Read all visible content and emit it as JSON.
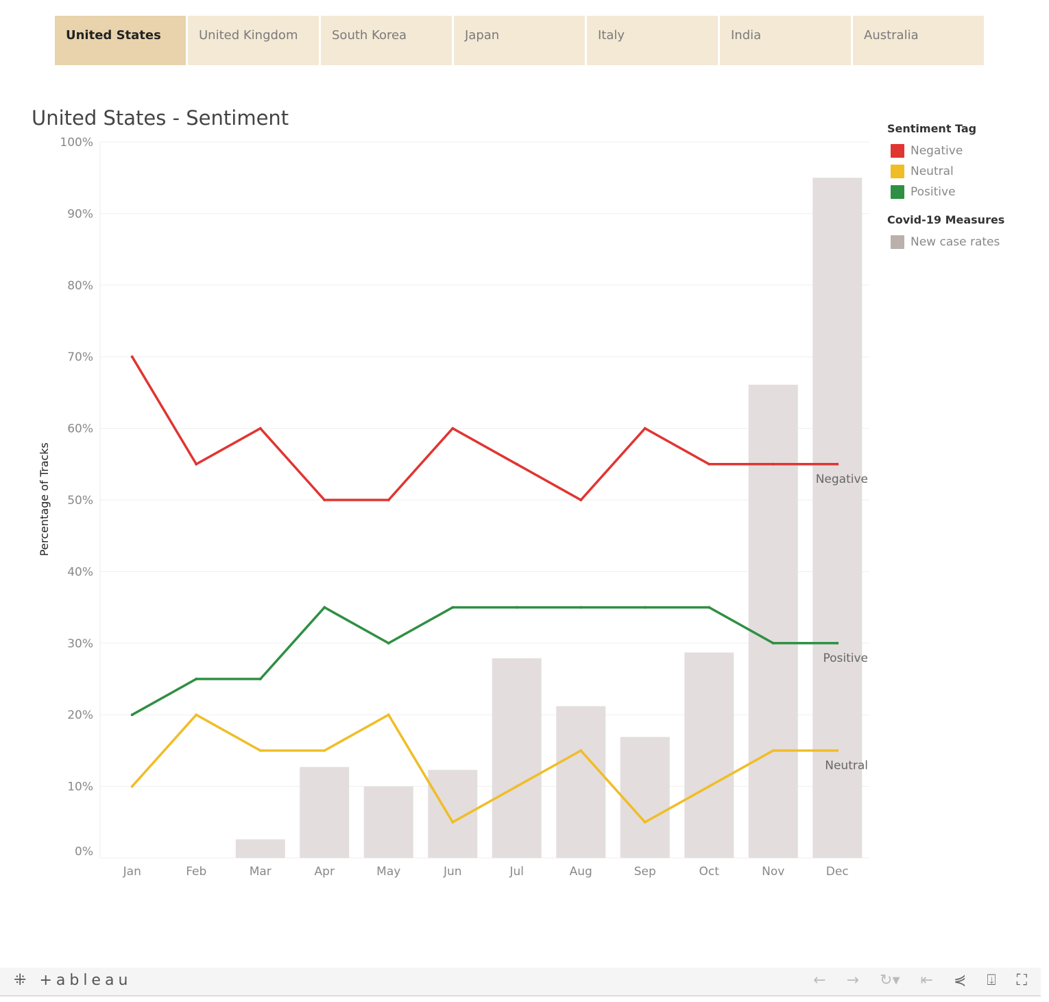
{
  "tabs": [
    {
      "label": "United States",
      "active": true
    },
    {
      "label": "United Kingdom"
    },
    {
      "label": "South Korea"
    },
    {
      "label": "Japan"
    },
    {
      "label": "Italy"
    },
    {
      "label": "India"
    },
    {
      "label": "Australia"
    }
  ],
  "legend": {
    "sentiment_title": "Sentiment Tag",
    "sentiment_items": [
      {
        "label": "Negative",
        "color": "#e03531"
      },
      {
        "label": "Neutral",
        "color": "#f0bd27"
      },
      {
        "label": "Positive",
        "color": "#2f8f42"
      }
    ],
    "covid_title": "Covid-19 Measures",
    "covid_items": [
      {
        "label": "New case rates",
        "color": "#bab0ac"
      }
    ]
  },
  "chart_data": {
    "type": "line+bar",
    "title": "United States - Sentiment",
    "ylabel": "Percentage of Tracks",
    "ylim": [
      0,
      100
    ],
    "yticks": [
      "0%",
      "10%",
      "20%",
      "30%",
      "40%",
      "50%",
      "60%",
      "70%",
      "80%",
      "90%",
      "100%"
    ],
    "categories": [
      "Jan",
      "Feb",
      "Mar",
      "Apr",
      "May",
      "Jun",
      "Jul",
      "Aug",
      "Sep",
      "Oct",
      "Nov",
      "Dec"
    ],
    "grid": true,
    "legend_placement": "right",
    "series": [
      {
        "name": "Negative",
        "type": "line",
        "color": "#e03531",
        "values": [
          70,
          55,
          60,
          50,
          50,
          60,
          55,
          50,
          60,
          55,
          55,
          55
        ]
      },
      {
        "name": "Positive",
        "type": "line",
        "color": "#2f8f42",
        "values": [
          20,
          25,
          25,
          35,
          30,
          35,
          35,
          35,
          35,
          35,
          30,
          30
        ]
      },
      {
        "name": "Neutral",
        "type": "line",
        "color": "#f0bd27",
        "values": [
          10,
          20,
          15,
          15,
          20,
          5,
          10,
          15,
          5,
          10,
          15,
          15
        ]
      },
      {
        "name": "New case rates",
        "type": "bar",
        "color": "#e3dddd",
        "axis": "secondary-hidden",
        "values": [
          0,
          0,
          2.6,
          12.7,
          10.0,
          12.3,
          27.9,
          21.2,
          16.9,
          28.7,
          66.1,
          95.0
        ]
      }
    ]
  },
  "footer": {
    "logo": "+ableau",
    "icons": [
      "undo-icon",
      "redo-icon",
      "revert-icon",
      "reset-icon",
      "share-icon",
      "download-icon",
      "fullscreen-icon"
    ]
  }
}
